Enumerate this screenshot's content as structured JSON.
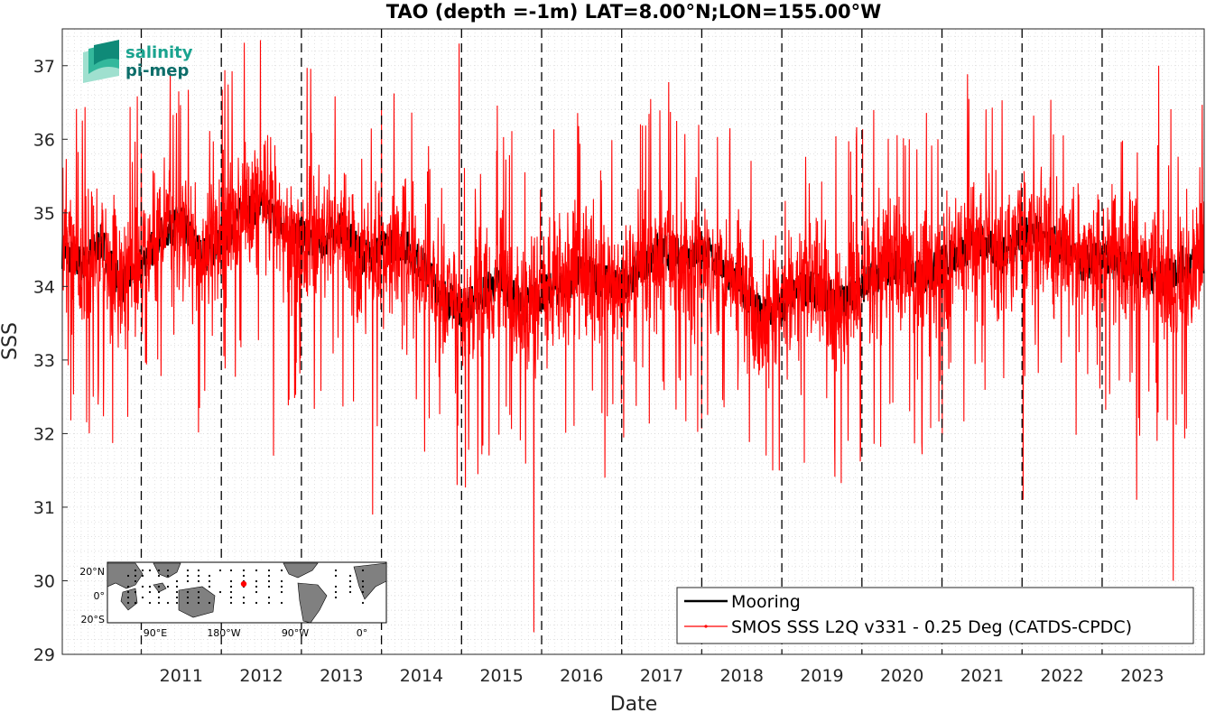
{
  "chart_data": {
    "type": "line",
    "title": "TAO (depth =-1m) LAT=8.00°N;LON=155.00°W",
    "xlabel": "Date",
    "ylabel": "SSS",
    "xlim": [
      "2010-01-06",
      "2024-04-10"
    ],
    "ylim": [
      29,
      37.5
    ],
    "x_ticks": [
      "2011",
      "2012",
      "2013",
      "2014",
      "2015",
      "2016",
      "2017",
      "2018",
      "2019",
      "2020",
      "2021",
      "2022",
      "2023"
    ],
    "y_ticks": [
      29,
      30,
      31,
      32,
      33,
      34,
      35,
      36,
      37
    ],
    "grid": "minor dotted, year boundaries dashed",
    "legend_position": "bottom-right",
    "series": [
      {
        "name": "Mooring",
        "color": "#000000",
        "x": [
          "2010-01",
          "2010-04",
          "2010-07",
          "2010-10",
          "2011-01",
          "2011-04",
          "2011-07",
          "2011-10",
          "2012-01",
          "2012-04",
          "2012-07",
          "2012-10",
          "2013-01",
          "2013-04",
          "2013-07",
          "2013-10",
          "2014-01",
          "2014-04",
          "2014-07",
          "2014-10",
          "2015-01",
          "2015-04",
          "2015-07",
          "2015-10",
          "2016-01",
          "2016-04",
          "2016-07",
          "2016-10",
          "2017-01",
          "2017-04",
          "2017-07",
          "2017-10",
          "2018-01",
          "2018-04",
          "2018-07",
          "2018-10",
          "2019-01",
          "2019-04",
          "2019-07",
          "2019-10",
          "2020-01",
          "2020-04",
          "2020-07",
          "2020-10",
          "2021-01",
          "2021-04",
          "2021-07",
          "2021-10",
          "2022-01",
          "2022-04",
          "2022-07",
          "2022-10",
          "2023-01",
          "2023-04",
          "2023-07",
          "2023-10",
          "2024-01",
          "2024-04"
        ],
        "values": [
          34.5,
          34.3,
          34.6,
          34.0,
          34.3,
          34.7,
          34.9,
          34.4,
          34.6,
          35.0,
          35.1,
          34.8,
          34.7,
          34.6,
          34.8,
          34.4,
          34.5,
          34.6,
          34.3,
          33.9,
          33.7,
          33.9,
          34.1,
          33.7,
          33.9,
          34.0,
          34.2,
          34.1,
          34.0,
          34.3,
          34.5,
          34.4,
          34.5,
          34.3,
          34.0,
          33.6,
          33.7,
          34.0,
          33.9,
          33.8,
          34.0,
          34.2,
          34.3,
          34.1,
          34.3,
          34.5,
          34.6,
          34.4,
          34.7,
          34.7,
          34.5,
          34.3,
          34.4,
          34.3,
          34.2,
          34.1,
          34.3,
          34.4
        ]
      },
      {
        "name": "SMOS SSS L2Q v331 - 0.25 Deg (CATDS-CPDC)",
        "color": "#ff0000",
        "x": [
          "2010-01",
          "2010-04",
          "2010-07",
          "2010-10",
          "2011-01",
          "2011-04",
          "2011-07",
          "2011-10",
          "2012-01",
          "2012-04",
          "2012-07",
          "2012-10",
          "2013-01",
          "2013-04",
          "2013-07",
          "2013-10",
          "2014-01",
          "2014-04",
          "2014-07",
          "2014-10",
          "2015-01",
          "2015-04",
          "2015-07",
          "2015-10",
          "2016-01",
          "2016-04",
          "2016-07",
          "2016-10",
          "2017-01",
          "2017-04",
          "2017-07",
          "2017-10",
          "2018-01",
          "2018-04",
          "2018-07",
          "2018-10",
          "2019-01",
          "2019-04",
          "2019-07",
          "2019-10",
          "2020-01",
          "2020-04",
          "2020-07",
          "2020-10",
          "2021-01",
          "2021-04",
          "2021-07",
          "2021-10",
          "2022-01",
          "2022-04",
          "2022-07",
          "2022-10",
          "2023-01",
          "2023-04",
          "2023-07",
          "2023-10",
          "2024-01",
          "2024-04"
        ],
        "values": [
          34.6,
          34.2,
          34.5,
          34.0,
          34.3,
          34.8,
          34.9,
          34.3,
          34.7,
          35.0,
          35.2,
          34.7,
          34.6,
          34.7,
          34.8,
          34.3,
          34.5,
          34.6,
          34.2,
          33.8,
          33.6,
          33.9,
          34.2,
          33.6,
          33.9,
          34.1,
          34.3,
          34.0,
          33.9,
          34.3,
          34.5,
          34.3,
          34.4,
          34.2,
          34.1,
          33.5,
          33.7,
          34.0,
          34.0,
          33.7,
          34.0,
          34.2,
          34.3,
          34.1,
          34.3,
          34.5,
          34.6,
          34.3,
          34.7,
          34.6,
          34.5,
          34.3,
          34.4,
          34.3,
          34.3,
          34.1,
          34.2,
          34.4
        ],
        "noise_amplitude": 0.9,
        "extremes": [
          {
            "x": "2014-12-20",
            "y": 37.3
          },
          {
            "x": "2015-11-25",
            "y": 29.3
          },
          {
            "x": "2023-11-20",
            "y": 30.0
          },
          {
            "x": "2013-11-20",
            "y": 30.9
          },
          {
            "x": "2011-05-10",
            "y": 36.9
          },
          {
            "x": "2023-09-15",
            "y": 37.0
          },
          {
            "x": "2016-10-15",
            "y": 31.4
          },
          {
            "x": "2012-08-25",
            "y": 31.7
          },
          {
            "x": "2022-01-05",
            "y": 31.1
          },
          {
            "x": "2023-06-05",
            "y": 31.1
          },
          {
            "x": "2018-11-20",
            "y": 31.5
          },
          {
            "x": "2019-12-25",
            "y": 31.8
          }
        ]
      }
    ]
  },
  "logo": {
    "line1": "salinity",
    "line2": "pi-mep"
  },
  "inset_map": {
    "lat_labels": [
      "20°N",
      "0°",
      "20°S"
    ],
    "lon_labels": [
      "90°E",
      "180°W",
      "90°W",
      "0°"
    ],
    "land_color": "#808080",
    "ocean_color": "#ffffff",
    "marker_color": "#ff0000"
  }
}
